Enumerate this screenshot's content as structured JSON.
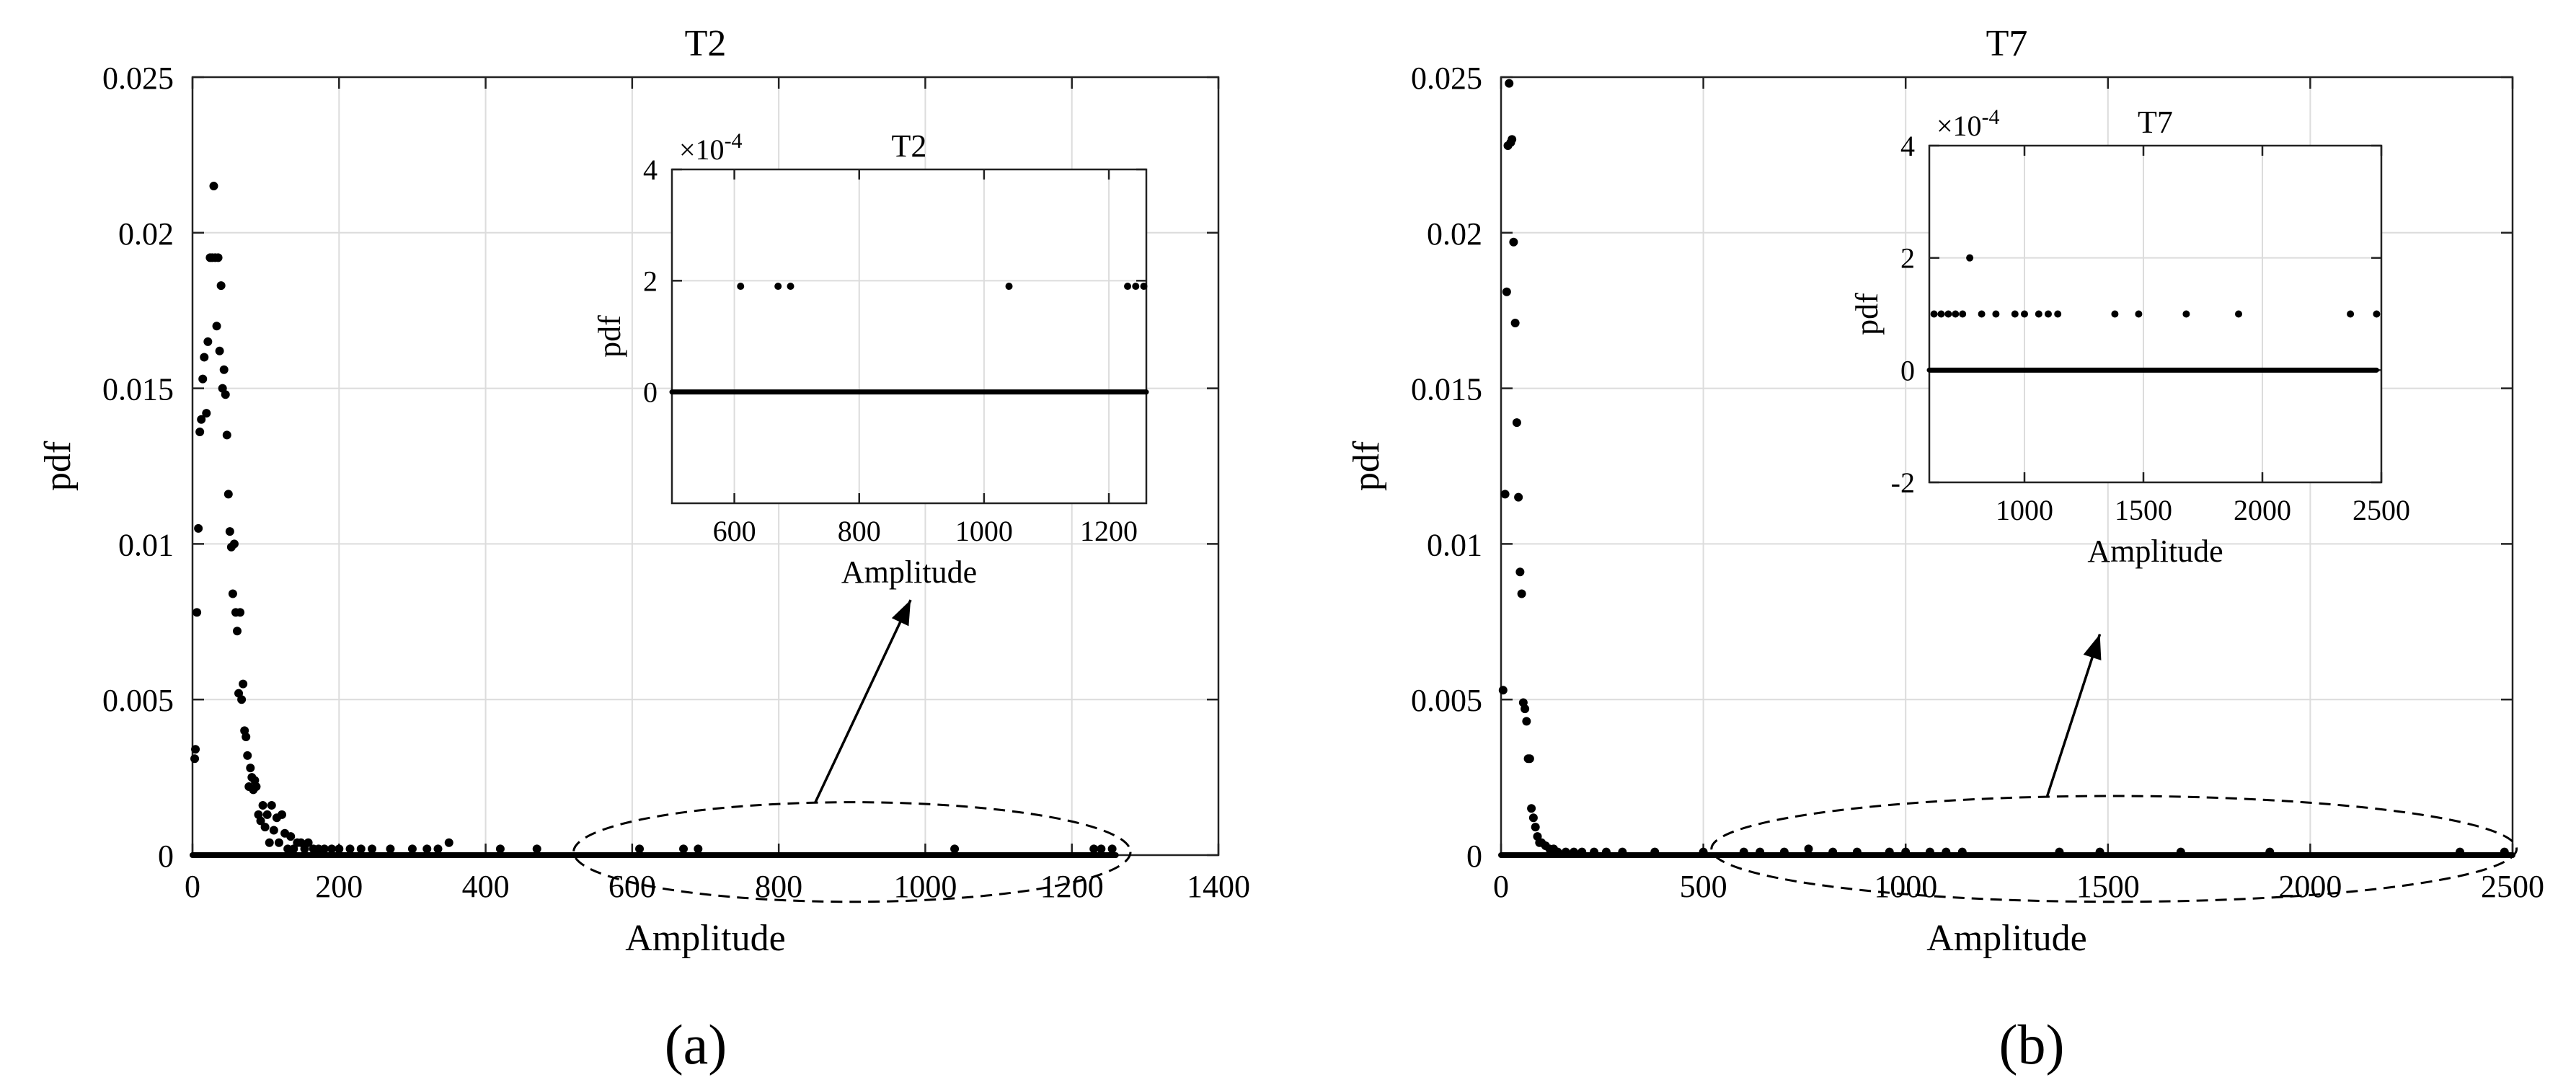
{
  "panels": [
    {
      "label": "(a)"
    },
    {
      "label": "(b)"
    }
  ],
  "chart_data": [
    {
      "type": "scatter",
      "title": "T2",
      "xlabel": "Amplitude",
      "ylabel": "pdf",
      "xlim": [
        0,
        1400
      ],
      "ylim": [
        0,
        0.025
      ],
      "xticks": [
        0,
        200,
        400,
        600,
        800,
        1000,
        1200,
        1400
      ],
      "xtick_labels": [
        "0",
        "200",
        "400",
        "600",
        "800",
        "1000",
        "1200",
        "1400"
      ],
      "yticks": [
        0,
        0.005,
        0.01,
        0.015,
        0.02,
        0.025
      ],
      "ytick_labels": [
        "0",
        "0.005",
        "0.01",
        "0.015",
        "0.02",
        "0.025"
      ],
      "grid": true,
      "marker_color": "#000000",
      "points": [
        [
          3,
          0.0031
        ],
        [
          4,
          0.0034
        ],
        [
          6,
          0.0078
        ],
        [
          8,
          0.0105
        ],
        [
          10,
          0.0136
        ],
        [
          12,
          0.014
        ],
        [
          14,
          0.0153
        ],
        [
          16,
          0.016
        ],
        [
          19,
          0.0142
        ],
        [
          21,
          0.0165
        ],
        [
          24,
          0.0192
        ],
        [
          27,
          0.0192
        ],
        [
          29,
          0.0215
        ],
        [
          31,
          0.0192
        ],
        [
          33,
          0.017
        ],
        [
          35,
          0.0192
        ],
        [
          37,
          0.0162
        ],
        [
          39,
          0.0183
        ],
        [
          41,
          0.015
        ],
        [
          43,
          0.0156
        ],
        [
          45,
          0.0148
        ],
        [
          47,
          0.0135
        ],
        [
          49,
          0.0116
        ],
        [
          51,
          0.0104
        ],
        [
          53,
          0.0099
        ],
        [
          55,
          0.0084
        ],
        [
          57,
          0.01
        ],
        [
          59,
          0.0078
        ],
        [
          61,
          0.0072
        ],
        [
          63,
          0.0052
        ],
        [
          65,
          0.0078
        ],
        [
          67,
          0.005
        ],
        [
          69,
          0.0055
        ],
        [
          71,
          0.004
        ],
        [
          73,
          0.0038
        ],
        [
          75,
          0.0032
        ],
        [
          77,
          0.0022
        ],
        [
          79,
          0.0028
        ],
        [
          81,
          0.0025
        ],
        [
          83,
          0.0021
        ],
        [
          85,
          0.0024
        ],
        [
          87,
          0.0022
        ],
        [
          90,
          0.0013
        ],
        [
          93,
          0.0011
        ],
        [
          96,
          0.0016
        ],
        [
          99,
          0.0009
        ],
        [
          102,
          0.0013
        ],
        [
          105,
          0.0004
        ],
        [
          108,
          0.0016
        ],
        [
          111,
          0.0008
        ],
        [
          115,
          0.0012
        ],
        [
          118,
          0.0004
        ],
        [
          122,
          0.0013
        ],
        [
          126,
          0.0007
        ],
        [
          130,
          0.0002
        ],
        [
          134,
          0.0006
        ],
        [
          138,
          0.0002
        ],
        [
          143,
          0.0004
        ],
        [
          148,
          0.0004
        ],
        [
          153,
          0.0002
        ],
        [
          158,
          0.0004
        ],
        [
          165,
          0.0002
        ],
        [
          172,
          0.0002
        ],
        [
          180,
          0.0002
        ],
        [
          190,
          0.0002
        ],
        [
          200,
          0.0002
        ],
        [
          215,
          0.0002
        ],
        [
          230,
          0.0002
        ],
        [
          245,
          0.0002
        ],
        [
          270,
          0.0002
        ],
        [
          300,
          0.0002
        ],
        [
          320,
          0.0002
        ],
        [
          335,
          0.0002
        ],
        [
          350,
          0.0004
        ],
        [
          420,
          0.0002
        ],
        [
          470,
          0.0002
        ],
        [
          610,
          0.0002
        ],
        [
          670,
          0.0002
        ],
        [
          690,
          0.0002
        ],
        [
          1040,
          0.0002
        ],
        [
          1230,
          0.0002
        ],
        [
          1240,
          0.0002
        ],
        [
          1255,
          0.0002
        ]
      ],
      "zero_band": [
        0,
        1260
      ],
      "annotation": {
        "ellipse_x": [
          520,
          1280
        ],
        "ellipse_y": [
          -0.0015,
          0.0017
        ],
        "arrow_from": [
          850,
          0.0017
        ],
        "arrow_to": [
          980,
          0.0082
        ]
      },
      "inset": {
        "title": "T2",
        "xlabel": "Amplitude",
        "ylabel": "pdf",
        "exponent_label": "×10",
        "exponent_power": "-4",
        "xlim": [
          500,
          1260
        ],
        "ylim": [
          -2,
          4
        ],
        "xticks": [
          600,
          800,
          1000,
          1200
        ],
        "xtick_labels": [
          "600",
          "800",
          "1000",
          "1200"
        ],
        "yticks": [
          0,
          2,
          4
        ],
        "ytick_labels": [
          "0",
          "2",
          "4"
        ],
        "grid": true,
        "points": [
          [
            610,
            1.9
          ],
          [
            670,
            1.9
          ],
          [
            690,
            1.9
          ],
          [
            1040,
            1.9
          ],
          [
            1230,
            1.9
          ],
          [
            1243,
            1.9
          ],
          [
            1256,
            1.9
          ]
        ],
        "zero_band": [
          500,
          1260
        ]
      }
    },
    {
      "type": "scatter",
      "title": "T7",
      "xlabel": "Amplitude",
      "ylabel": "pdf",
      "xlim": [
        0,
        2500
      ],
      "ylim": [
        0,
        0.025
      ],
      "xticks": [
        0,
        500,
        1000,
        1500,
        2000,
        2500
      ],
      "xtick_labels": [
        "0",
        "500",
        "1000",
        "1500",
        "2000",
        "2500"
      ],
      "yticks": [
        0,
        0.005,
        0.01,
        0.015,
        0.02,
        0.025
      ],
      "ytick_labels": [
        "0",
        "0.005",
        "0.01",
        "0.015",
        "0.02",
        "0.025"
      ],
      "grid": true,
      "marker_color": "#000000",
      "points": [
        [
          5,
          0.0053
        ],
        [
          10,
          0.0116
        ],
        [
          14,
          0.0181
        ],
        [
          17,
          0.0228
        ],
        [
          20,
          0.0248
        ],
        [
          24,
          0.0229
        ],
        [
          27,
          0.023
        ],
        [
          31,
          0.0197
        ],
        [
          35,
          0.0171
        ],
        [
          39,
          0.0139
        ],
        [
          43,
          0.0115
        ],
        [
          47,
          0.0091
        ],
        [
          51,
          0.0084
        ],
        [
          55,
          0.0049
        ],
        [
          59,
          0.0047
        ],
        [
          63,
          0.0043
        ],
        [
          67,
          0.0031
        ],
        [
          71,
          0.0031
        ],
        [
          75,
          0.0015
        ],
        [
          80,
          0.0012
        ],
        [
          85,
          0.0009
        ],
        [
          90,
          0.0006
        ],
        [
          95,
          0.0004
        ],
        [
          100,
          0.0004
        ],
        [
          110,
          0.0003
        ],
        [
          120,
          0.0002
        ],
        [
          130,
          0.0002
        ],
        [
          140,
          0.0001
        ],
        [
          160,
          0.0001
        ],
        [
          180,
          0.0001
        ],
        [
          200,
          0.0001
        ],
        [
          230,
          0.0001
        ],
        [
          260,
          0.0001
        ],
        [
          300,
          0.0001
        ],
        [
          380,
          0.0001
        ],
        [
          500,
          0.0001
        ],
        [
          600,
          0.0001
        ],
        [
          640,
          0.0001
        ],
        [
          700,
          0.0001
        ],
        [
          760,
          0.0002
        ],
        [
          820,
          0.0001
        ],
        [
          880,
          0.0001
        ],
        [
          960,
          0.0001
        ],
        [
          1000,
          0.0001
        ],
        [
          1060,
          0.0001
        ],
        [
          1100,
          0.0001
        ],
        [
          1140,
          0.0001
        ],
        [
          1380,
          0.0001
        ],
        [
          1480,
          0.0001
        ],
        [
          1680,
          0.0001
        ],
        [
          1900,
          0.0001
        ],
        [
          2370,
          0.0001
        ],
        [
          2480,
          0.0001
        ]
      ],
      "zero_band": [
        0,
        2500
      ],
      "annotation": {
        "ellipse_x": [
          520,
          2510
        ],
        "ellipse_y": [
          -0.0015,
          0.0019
        ],
        "arrow_from": [
          1350,
          0.0019
        ],
        "arrow_to": [
          1480,
          0.0071
        ]
      },
      "inset": {
        "title": "T7",
        "xlabel": "Amplitude",
        "ylabel": "pdf",
        "exponent_label": "×10",
        "exponent_power": "-4",
        "xlim": [
          600,
          2500
        ],
        "ylim": [
          -2,
          4
        ],
        "xticks": [
          1000,
          1500,
          2000,
          2500
        ],
        "xtick_labels": [
          "1000",
          "1500",
          "2000",
          "2500"
        ],
        "yticks": [
          -2,
          0,
          2,
          4
        ],
        "ytick_labels": [
          "-2",
          "0",
          "2",
          "4"
        ],
        "grid": true,
        "points": [
          [
            620,
            1
          ],
          [
            650,
            1
          ],
          [
            680,
            1
          ],
          [
            710,
            1
          ],
          [
            740,
            1
          ],
          [
            770,
            2
          ],
          [
            820,
            1
          ],
          [
            880,
            1
          ],
          [
            960,
            1
          ],
          [
            1000,
            1
          ],
          [
            1060,
            1
          ],
          [
            1100,
            1
          ],
          [
            1140,
            1
          ],
          [
            1380,
            1
          ],
          [
            1480,
            1
          ],
          [
            1680,
            1
          ],
          [
            1900,
            1
          ],
          [
            2370,
            1
          ],
          [
            2480,
            1
          ]
        ],
        "zero_band": [
          600,
          2480
        ]
      }
    }
  ]
}
